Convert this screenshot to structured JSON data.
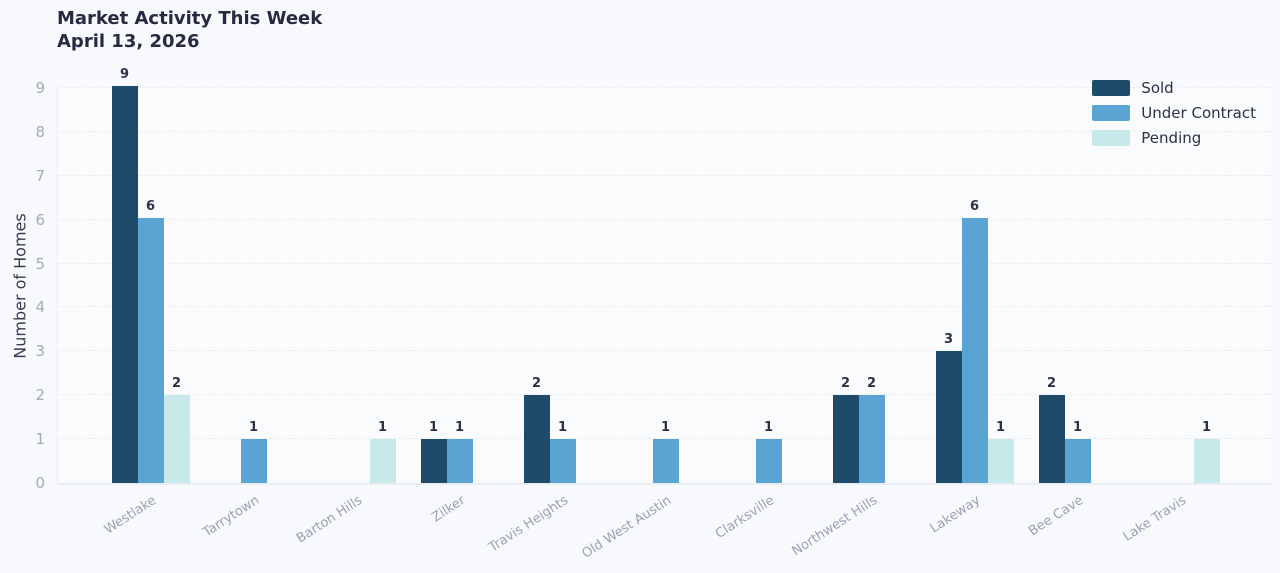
{
  "header": {
    "title": "Market Activity This Week",
    "subtitle": "April 13, 2026"
  },
  "chart_data": {
    "type": "bar",
    "title": "Market Activity This Week",
    "subtitle": "April 13, 2026",
    "categories": [
      "Westlake",
      "Tarrytown",
      "Barton Hills",
      "Zilker",
      "Travis Heights",
      "Old West Austin",
      "Clarksville",
      "Northwest Hills",
      "Lakeway",
      "Bee Cave",
      "Lake Travis"
    ],
    "series": [
      {
        "name": "Sold",
        "color": "#1e4b69",
        "values": [
          9,
          0,
          0,
          1,
          2,
          0,
          0,
          2,
          3,
          2,
          0
        ]
      },
      {
        "name": "Under Contract",
        "color": "#5aa4d4",
        "values": [
          6,
          1,
          0,
          1,
          1,
          1,
          1,
          2,
          6,
          1,
          0
        ]
      },
      {
        "name": "Pending",
        "color": "#c8e9e9",
        "values": [
          2,
          0,
          1,
          0,
          0,
          0,
          0,
          0,
          1,
          0,
          1
        ]
      }
    ],
    "xlabel": "",
    "ylabel": "Number of Homes",
    "ylim": [
      0,
      9
    ],
    "yticks": [
      0,
      1,
      2,
      3,
      4,
      5,
      6,
      7,
      8,
      9
    ],
    "grid": true,
    "bar_labels": true,
    "legend_position": "top-right",
    "colors": {
      "background": "#f7f9fc",
      "title_text": "#252b41",
      "tick_text": "#a4aabc",
      "category_text": "#9aa1b5",
      "value_label_text": "#2b3147"
    }
  }
}
